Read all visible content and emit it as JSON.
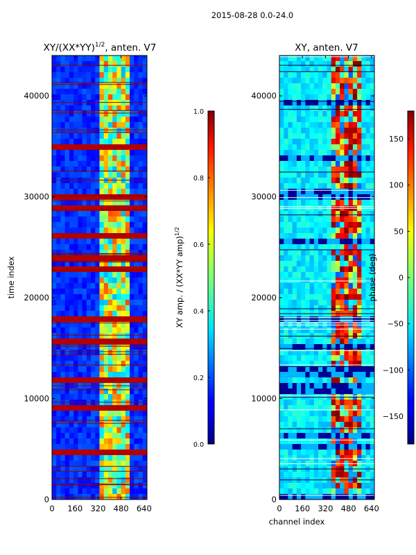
{
  "figure": {
    "suptitle": "2015-08-28 0.0-24.0"
  },
  "chart_data": [
    {
      "type": "heatmap",
      "title_main": "XY/(XX*YY)",
      "title_sup": "1/2",
      "title_tail": ", anten. V7",
      "xlabel": "",
      "ylabel": "time index",
      "xlim": [
        0,
        660
      ],
      "ylim": [
        0,
        44000
      ],
      "xticks": [
        0,
        160,
        320,
        480,
        640
      ],
      "yticks": [
        0,
        10000,
        20000,
        30000,
        40000
      ],
      "highlight_channels": [
        320,
        540
      ],
      "colorbar": {
        "label_main": "XY amp. / (XX*YY amp)",
        "label_sup": "1/2",
        "range": [
          0.0,
          1.0
        ],
        "ticks": [
          0.0,
          0.2,
          0.4,
          0.6,
          0.8,
          1.0
        ],
        "tick_labels": [
          "0.0",
          "0.2",
          "0.4",
          "0.6",
          "0.8",
          "1.0"
        ],
        "colormap": "jet"
      }
    },
    {
      "type": "heatmap",
      "title": "XY, anten. V7",
      "xlabel": "channel index",
      "ylabel": "",
      "xlim": [
        0,
        660
      ],
      "ylim": [
        0,
        44000
      ],
      "xticks": [
        0,
        160,
        320,
        480,
        640
      ],
      "yticks": [
        0,
        10000,
        20000,
        30000,
        40000
      ],
      "highlight_channels": [
        360,
        560
      ],
      "colorbar": {
        "label": "phase (deg)",
        "range": [
          -180,
          180
        ],
        "ticks": [
          -150,
          -100,
          -50,
          0,
          50,
          100,
          150
        ],
        "tick_labels": [
          "−150",
          "−100",
          "−50",
          "0",
          "50",
          "100",
          "150"
        ],
        "colormap": "jet"
      }
    }
  ]
}
